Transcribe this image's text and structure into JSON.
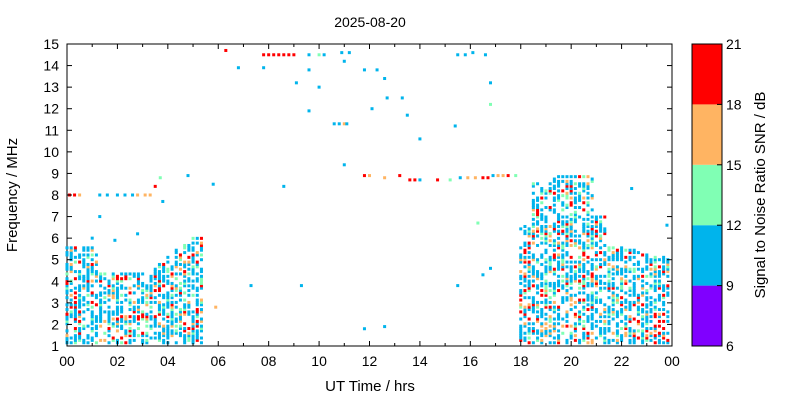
{
  "chart_data": {
    "type": "heatmap",
    "title": "2025-08-20",
    "xlabel": "UT Time / hrs",
    "ylabel": "Frequency / MHz",
    "colorbar_label": "Signal to Noise Ratio SNR / dB",
    "xlim": [
      0,
      24
    ],
    "ylim": [
      1,
      15
    ],
    "x_ticks": [
      "00",
      "02",
      "04",
      "06",
      "08",
      "10",
      "12",
      "14",
      "16",
      "18",
      "20",
      "22",
      "00"
    ],
    "y_ticks": [
      "1",
      "2",
      "3",
      "4",
      "5",
      "6",
      "7",
      "8",
      "9",
      "10",
      "11",
      "12",
      "13",
      "14",
      "15"
    ],
    "colorbar": {
      "bins": [
        {
          "from": 6,
          "to": 9,
          "color": "#8000ff"
        },
        {
          "from": 9,
          "to": 12,
          "color": "#00b4ec"
        },
        {
          "from": 12,
          "to": 15,
          "color": "#80ffb4"
        },
        {
          "from": 15,
          "to": 18,
          "color": "#ffb462"
        },
        {
          "from": 18,
          "to": 21,
          "color": "#ff0000"
        }
      ],
      "ticks": [
        "6",
        "9",
        "12",
        "15",
        "18",
        "21"
      ]
    },
    "grid": false,
    "series": [
      {
        "values": [
          [
            0.1,
            8.0,
            18
          ],
          [
            0.3,
            8.0,
            18
          ],
          [
            0.5,
            8.0,
            16
          ],
          [
            2.0,
            8.0,
            10
          ],
          [
            2.3,
            8.0,
            10
          ],
          [
            2.6,
            8.0,
            10
          ],
          [
            2.8,
            8.0,
            16
          ],
          [
            3.1,
            8.0,
            16
          ],
          [
            3.3,
            8.0,
            16
          ],
          [
            1.3,
            8.0,
            10
          ],
          [
            1.6,
            8.0,
            10
          ],
          [
            3.5,
            8.4,
            19
          ],
          [
            3.7,
            8.8,
            13
          ],
          [
            3.8,
            7.7,
            10
          ],
          [
            4.8,
            8.9,
            10
          ],
          [
            5.8,
            8.5,
            10
          ],
          [
            1.3,
            7.0,
            10
          ],
          [
            1.0,
            6.0,
            10
          ],
          [
            1.9,
            5.9,
            10
          ],
          [
            2.8,
            6.2,
            10
          ],
          [
            6.3,
            14.7,
            19
          ],
          [
            6.8,
            13.9,
            10
          ],
          [
            7.8,
            14.5,
            19
          ],
          [
            8.0,
            14.5,
            19
          ],
          [
            8.2,
            14.5,
            19
          ],
          [
            8.4,
            14.5,
            19
          ],
          [
            8.6,
            14.5,
            19
          ],
          [
            8.8,
            14.5,
            19
          ],
          [
            9.0,
            14.5,
            19
          ],
          [
            7.8,
            13.9,
            10
          ],
          [
            9.1,
            13.2,
            10
          ],
          [
            9.6,
            14.5,
            10
          ],
          [
            9.6,
            13.8,
            10
          ],
          [
            10.0,
            14.5,
            13
          ],
          [
            10.2,
            14.5,
            10
          ],
          [
            10.0,
            13.0,
            10
          ],
          [
            9.6,
            11.9,
            10
          ],
          [
            10.6,
            11.3,
            10
          ],
          [
            10.8,
            11.3,
            10
          ],
          [
            11.0,
            11.3,
            16
          ],
          [
            11.1,
            11.3,
            10
          ],
          [
            10.9,
            14.6,
            10
          ],
          [
            11.2,
            14.6,
            10
          ],
          [
            11.0,
            14.2,
            10
          ],
          [
            11.8,
            13.8,
            10
          ],
          [
            12.3,
            13.8,
            10
          ],
          [
            12.6,
            13.4,
            10
          ],
          [
            12.1,
            12.0,
            10
          ],
          [
            12.7,
            12.5,
            10
          ],
          [
            13.3,
            12.5,
            10
          ],
          [
            13.5,
            11.7,
            10
          ],
          [
            14.0,
            10.6,
            10
          ],
          [
            15.5,
            14.5,
            10
          ],
          [
            15.8,
            14.5,
            10
          ],
          [
            16.1,
            14.6,
            10
          ],
          [
            16.6,
            14.5,
            10
          ],
          [
            16.8,
            13.2,
            10
          ],
          [
            16.8,
            12.2,
            13
          ],
          [
            15.4,
            11.2,
            10
          ],
          [
            11.0,
            9.4,
            10
          ],
          [
            11.8,
            8.9,
            19
          ],
          [
            12.0,
            8.9,
            16
          ],
          [
            12.6,
            8.8,
            16
          ],
          [
            13.2,
            8.9,
            19
          ],
          [
            13.6,
            8.7,
            19
          ],
          [
            13.8,
            8.7,
            19
          ],
          [
            14.0,
            8.7,
            10
          ],
          [
            14.7,
            8.7,
            19
          ],
          [
            15.2,
            8.7,
            13
          ],
          [
            15.6,
            8.8,
            10
          ],
          [
            15.9,
            8.8,
            16
          ],
          [
            16.2,
            8.8,
            16
          ],
          [
            16.5,
            8.8,
            19
          ],
          [
            16.7,
            8.8,
            19
          ],
          [
            16.9,
            8.9,
            10
          ],
          [
            17.1,
            8.9,
            16
          ],
          [
            17.3,
            8.9,
            16
          ],
          [
            17.5,
            8.9,
            19
          ],
          [
            17.8,
            8.9,
            13
          ],
          [
            8.6,
            8.4,
            10
          ],
          [
            7.3,
            3.8,
            10
          ],
          [
            9.3,
            3.8,
            10
          ],
          [
            11.8,
            1.8,
            10
          ],
          [
            12.6,
            1.9,
            10
          ],
          [
            15.5,
            3.8,
            10
          ],
          [
            16.3,
            6.7,
            13
          ],
          [
            16.5,
            4.3,
            10
          ],
          [
            16.8,
            4.6,
            10
          ],
          [
            23.8,
            6.6,
            10
          ],
          [
            22.4,
            8.3,
            10
          ],
          [
            5.9,
            2.8,
            16
          ]
        ]
      }
    ]
  }
}
